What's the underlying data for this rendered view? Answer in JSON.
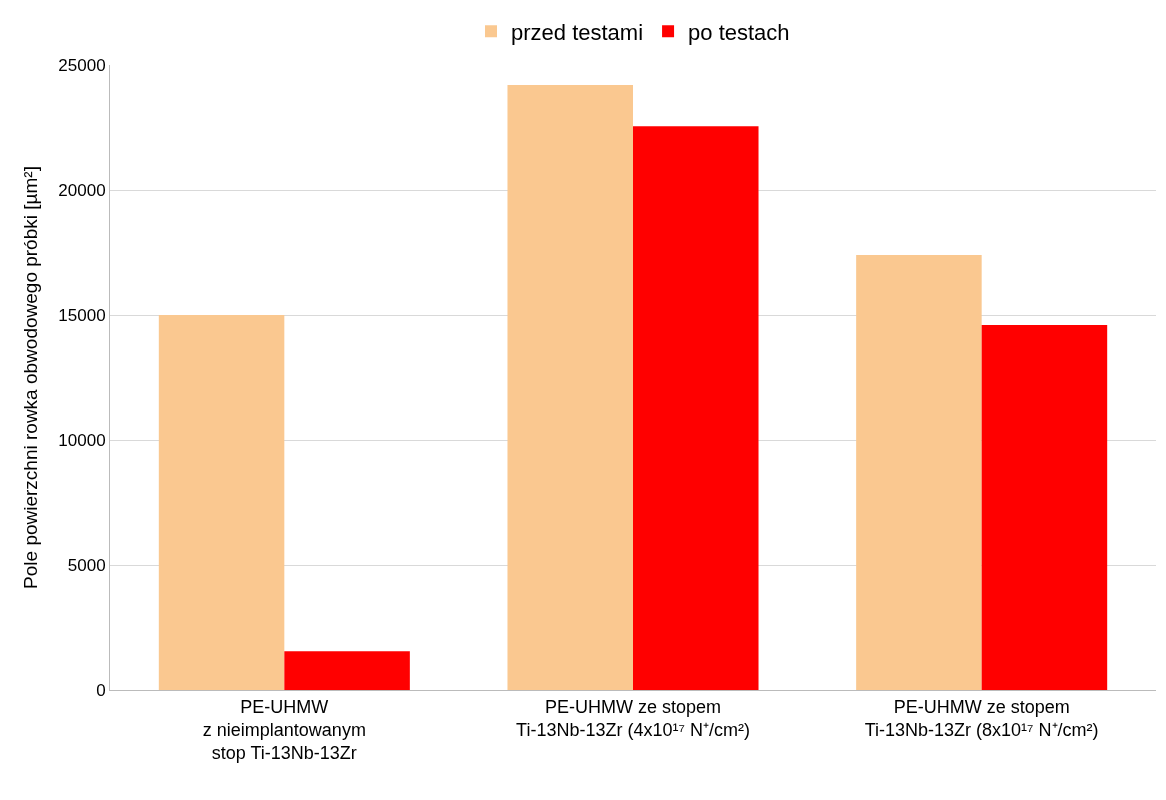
{
  "chart_data": {
    "type": "bar",
    "ylabel": "Pole powierzchni rowka obwodowego próbki [µm²]",
    "categories": [
      "PE-UHMW\nz nieimplantowanym\nstop Ti-13Nb-13Zr",
      "PE-UHMW ze stopem\nTi-13Nb-13Zr (4x10¹⁷ N⁺/cm²)",
      "PE-UHMW ze stopem\nTi-13Nb-13Zr (8x10¹⁷ N⁺/cm²)"
    ],
    "series": [
      {
        "name": "przed testami",
        "color": "#fac890",
        "values": [
          15000,
          24200,
          17400
        ]
      },
      {
        "name": "po testach",
        "color": "#ff0000",
        "values": [
          1550,
          22550,
          14600
        ]
      }
    ],
    "ylim": [
      0,
      25000
    ],
    "yticks": [
      0,
      5000,
      10000,
      15000,
      20000,
      25000
    ],
    "grid": "y",
    "legend": "top"
  }
}
